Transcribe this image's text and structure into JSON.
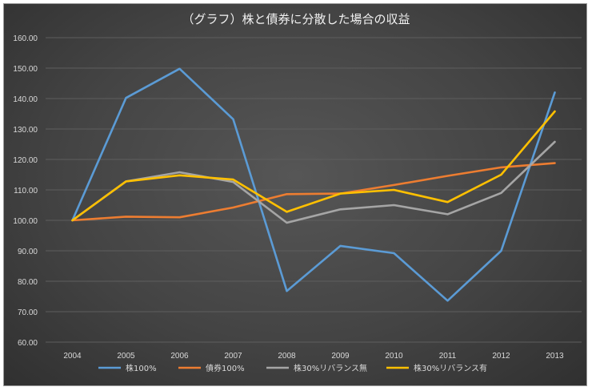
{
  "chart_data": {
    "type": "line",
    "title": "（グラフ）株と債券に分散した場合の収益",
    "xlabel": "",
    "ylabel": "",
    "categories": [
      "2004",
      "2005",
      "2006",
      "2007",
      "2008",
      "2009",
      "2010",
      "2011",
      "2012",
      "2013"
    ],
    "ylim": [
      60,
      160
    ],
    "ytick_step": 10,
    "ytick_labels": [
      "60.00",
      "70.00",
      "80.00",
      "90.00",
      "100.00",
      "110.00",
      "120.00",
      "130.00",
      "140.00",
      "150.00",
      "160.00"
    ],
    "grid": true,
    "legend_position": "bottom",
    "series": [
      {
        "name": "株100%",
        "color": "#5b9bd5",
        "values": [
          100,
          140.2,
          149.8,
          133.2,
          76.8,
          91.6,
          89.2,
          73.6,
          90,
          142
        ]
      },
      {
        "name": "債券100%",
        "color": "#ed7d31",
        "values": [
          100,
          101.2,
          101,
          104.2,
          108.6,
          108.8,
          111.6,
          114.6,
          117.4,
          118.8
        ]
      },
      {
        "name": "株30%リバランス無",
        "color": "#a5a5a5",
        "values": [
          100,
          112.8,
          115.8,
          112.6,
          99.2,
          103.6,
          105,
          102,
          109,
          125.8
        ]
      },
      {
        "name": "株30%リバランス有",
        "color": "#ffc000",
        "values": [
          100,
          112.8,
          114.8,
          113.4,
          102.8,
          108.8,
          110,
          106,
          115,
          135.8
        ]
      }
    ]
  }
}
